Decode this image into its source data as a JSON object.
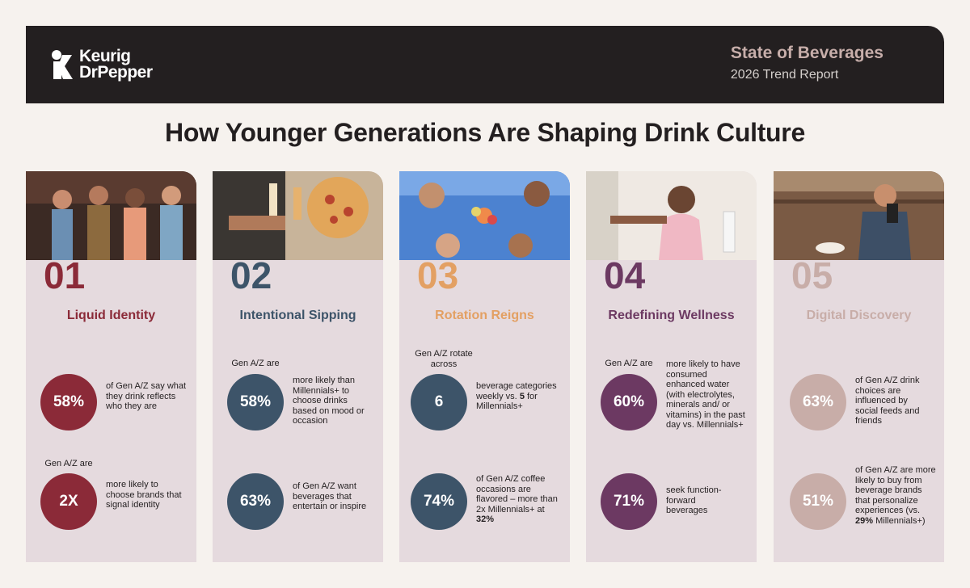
{
  "header": {
    "logo_line1": "Keurig",
    "logo_line2": "DrPepper",
    "report_title": "State of Beverages",
    "report_subtitle": "2026 Trend Report"
  },
  "headline": "How Younger Generations Are Shaping Drink Culture",
  "colors": {
    "banner": "#231f20",
    "card": "#e5dade",
    "trend1": "#8b2a38",
    "trend2": "#3d5469",
    "trend3": "#e3a063",
    "trend4": "#6c3962",
    "trend5": "#c8ada8"
  },
  "trends": [
    {
      "number": "01",
      "title": "Liquid Identity",
      "stat1": {
        "pre": "",
        "value": "58%",
        "text": "of Gen A/Z say what they drink reflects who they are"
      },
      "stat2": {
        "pre": "Gen A/Z are",
        "value": "2X",
        "text": "more likely to choose brands that signal identity"
      }
    },
    {
      "number": "02",
      "title": "Intentional Sipping",
      "stat1": {
        "pre": "Gen A/Z are",
        "value": "58%",
        "text": "more likely than Millennials+ to choose drinks based on mood or occasion"
      },
      "stat2": {
        "pre": "",
        "value": "63%",
        "text": "of Gen A/Z want beverages that entertain or inspire"
      }
    },
    {
      "number": "03",
      "title": "Rotation Reigns",
      "stat1": {
        "pre": "Gen A/Z rotate across",
        "value": "6",
        "text_a": "beverage categories weekly vs.",
        "text_bold": "5",
        "text_b": "for Millennials+"
      },
      "stat2": {
        "pre": "",
        "value": "74%",
        "text_a": "of Gen A/Z coffee occasions are flavored – more than 2x Millennials+ at",
        "text_bold": "32%",
        "text_b": ""
      }
    },
    {
      "number": "04",
      "title": "Redefining Wellness",
      "stat1": {
        "pre": "Gen A/Z are",
        "value": "60%",
        "text": "more likely to have consumed enhanced water (with electrolytes, minerals and/ or vitamins) in the past day vs. Millennials+"
      },
      "stat2": {
        "pre": "",
        "value": "71%",
        "text": "seek function-forward beverages"
      }
    },
    {
      "number": "05",
      "title": "Digital Discovery",
      "stat1": {
        "pre": "",
        "value": "63%",
        "text": "of Gen A/Z drink choices are influenced by social feeds and friends"
      },
      "stat2": {
        "pre": "",
        "value": "51%",
        "text_a": "of Gen A/Z are more likely to buy from beverage brands that personalize experiences (vs.",
        "text_bold": "29%",
        "text_b": "Millennials+)"
      }
    }
  ]
}
